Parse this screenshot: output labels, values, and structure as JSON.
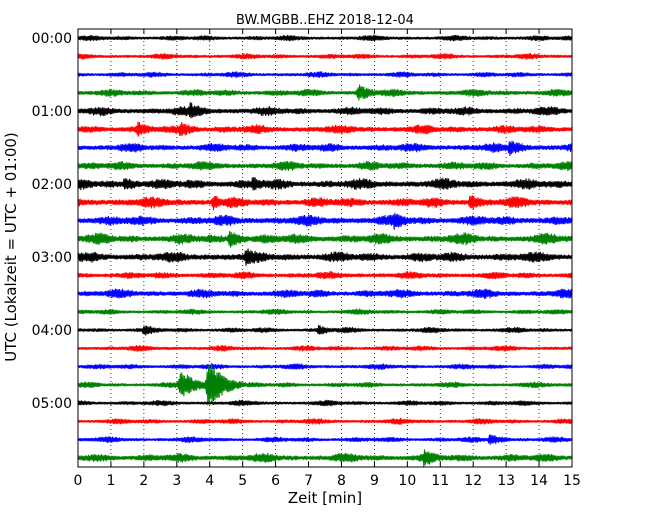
{
  "chart_data": {
    "type": "line",
    "title": "BW.MGBB..EHZ 2018-12-04",
    "xlabel": "Zeit  [min]",
    "ylabel": "UTC (Lokalzeit = UTC + 01:00)",
    "xlim": [
      0,
      15
    ],
    "xticks": [
      0,
      1,
      2,
      3,
      4,
      5,
      6,
      7,
      8,
      9,
      10,
      11,
      12,
      13,
      14,
      15
    ],
    "xtick_labels": [
      "0",
      "1",
      "2",
      "3",
      "4",
      "5",
      "6",
      "7",
      "8",
      "9",
      "10",
      "11",
      "12",
      "13",
      "14",
      "15"
    ],
    "ytick_labels": [
      "00:00",
      "01:00",
      "02:00",
      "03:00",
      "04:00",
      "05:00"
    ],
    "ytick_row_index": [
      0,
      4,
      8,
      12,
      16,
      20
    ],
    "row_interval_minutes": 15,
    "grid": {
      "x": "dotted"
    },
    "legend": "none",
    "color_cycle": [
      "#000000",
      "#ff0000",
      "#0000ff",
      "#008000"
    ],
    "series": [
      {
        "start": "00:00",
        "color": "#000000",
        "amplitude": 3,
        "events": []
      },
      {
        "start": "00:15",
        "color": "#ff0000",
        "amplitude": 3,
        "events": []
      },
      {
        "start": "00:30",
        "color": "#0000ff",
        "amplitude": 3,
        "events": []
      },
      {
        "start": "00:45",
        "color": "#008000",
        "amplitude": 4,
        "events": [
          {
            "t": 8.5,
            "amp": 9
          }
        ]
      },
      {
        "start": "01:00",
        "color": "#000000",
        "amplitude": 5,
        "events": [
          {
            "t": 3.4,
            "amp": 9
          }
        ]
      },
      {
        "start": "01:15",
        "color": "#ff0000",
        "amplitude": 5,
        "events": [
          {
            "t": 1.8,
            "amp": 8
          },
          {
            "t": 3.1,
            "amp": 8
          }
        ]
      },
      {
        "start": "01:30",
        "color": "#0000ff",
        "amplitude": 5,
        "events": [
          {
            "t": 13.1,
            "amp": 9
          }
        ]
      },
      {
        "start": "01:45",
        "color": "#008000",
        "amplitude": 5,
        "events": []
      },
      {
        "start": "02:00",
        "color": "#000000",
        "amplitude": 6,
        "events": [
          {
            "t": 1.4,
            "amp": 8
          },
          {
            "t": 5.3,
            "amp": 8
          }
        ]
      },
      {
        "start": "02:15",
        "color": "#ff0000",
        "amplitude": 6,
        "events": [
          {
            "t": 4.1,
            "amp": 8
          },
          {
            "t": 11.9,
            "amp": 9
          }
        ]
      },
      {
        "start": "02:30",
        "color": "#0000ff",
        "amplitude": 6,
        "events": [
          {
            "t": 9.6,
            "amp": 9
          }
        ]
      },
      {
        "start": "02:45",
        "color": "#008000",
        "amplitude": 6,
        "events": [
          {
            "t": 4.6,
            "amp": 9
          }
        ]
      },
      {
        "start": "03:00",
        "color": "#000000",
        "amplitude": 6,
        "events": [
          {
            "t": 5.1,
            "amp": 10
          }
        ]
      },
      {
        "start": "03:15",
        "color": "#ff0000",
        "amplitude": 4,
        "events": []
      },
      {
        "start": "03:30",
        "color": "#0000ff",
        "amplitude": 5,
        "events": []
      },
      {
        "start": "03:45",
        "color": "#008000",
        "amplitude": 3,
        "events": []
      },
      {
        "start": "04:00",
        "color": "#000000",
        "amplitude": 3,
        "events": [
          {
            "t": 2.0,
            "amp": 6
          },
          {
            "t": 7.3,
            "amp": 5
          }
        ]
      },
      {
        "start": "04:15",
        "color": "#ff0000",
        "amplitude": 3,
        "events": []
      },
      {
        "start": "04:30",
        "color": "#0000ff",
        "amplitude": 3,
        "events": []
      },
      {
        "start": "04:45",
        "color": "#008000",
        "amplitude": 3,
        "events": [
          {
            "t": 3.1,
            "amp": 16
          },
          {
            "t": 3.95,
            "amp": 28
          }
        ]
      },
      {
        "start": "05:00",
        "color": "#000000",
        "amplitude": 3,
        "events": []
      },
      {
        "start": "05:15",
        "color": "#ff0000",
        "amplitude": 3,
        "events": []
      },
      {
        "start": "05:30",
        "color": "#0000ff",
        "amplitude": 3,
        "events": [
          {
            "t": 12.5,
            "amp": 6
          }
        ]
      },
      {
        "start": "05:45",
        "color": "#008000",
        "amplitude": 5,
        "events": [
          {
            "t": 10.5,
            "amp": 9
          }
        ]
      }
    ]
  }
}
